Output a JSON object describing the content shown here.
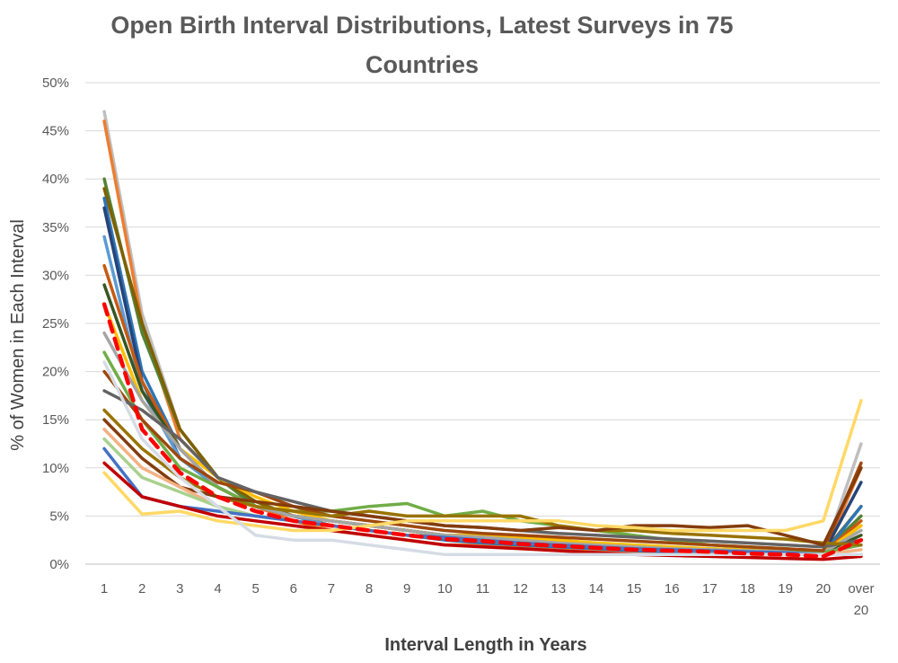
{
  "chart_data": {
    "type": "line",
    "title": "Open Birth Interval Distributions, Latest Surveys in 75 Countries",
    "xlabel": "Interval Length in Years",
    "ylabel": "% of  Women in Each Interval",
    "categories": [
      "1",
      "2",
      "3",
      "4",
      "5",
      "6",
      "7",
      "8",
      "9",
      "10",
      "11",
      "12",
      "13",
      "14",
      "15",
      "16",
      "17",
      "18",
      "19",
      "20",
      "over 20"
    ],
    "y_ticks": [
      "0%",
      "5%",
      "10%",
      "15%",
      "20%",
      "25%",
      "30%",
      "35%",
      "40%",
      "45%",
      "50%"
    ],
    "ylim": [
      0,
      50
    ],
    "grid": true,
    "legend": "none",
    "series": [
      {
        "color": "#bfbfbf",
        "values": [
          47,
          26,
          14,
          9,
          6,
          4.5,
          3.5,
          3,
          2.5,
          2,
          2,
          1.8,
          1.5,
          1.3,
          1.2,
          1.2,
          1.1,
          1,
          1,
          1,
          12.5
        ]
      },
      {
        "color": "#ed7d31",
        "values": [
          46,
          25,
          13,
          9,
          6,
          4.5,
          3.5,
          3,
          2.5,
          2,
          2,
          1.8,
          1.5,
          1.3,
          1.2,
          1.2,
          1.1,
          1,
          1,
          1,
          10
        ]
      },
      {
        "color": "#548235",
        "values": [
          40,
          24,
          14,
          9,
          6,
          5,
          4.5,
          4,
          3.5,
          3,
          2.8,
          2.5,
          2.2,
          2,
          1.8,
          1.6,
          1.5,
          1.4,
          1.3,
          1.2,
          5
        ]
      },
      {
        "color": "#7f6000",
        "values": [
          39,
          25,
          14,
          9,
          6.5,
          5,
          4.5,
          4,
          3.5,
          3,
          2.8,
          2.5,
          2.2,
          2,
          1.8,
          1.6,
          1.5,
          1.4,
          1.3,
          1.2,
          6
        ]
      },
      {
        "color": "#2e75b6",
        "values": [
          38,
          20,
          12,
          8,
          6,
          5,
          4,
          3.5,
          3,
          2.5,
          2.2,
          2,
          1.8,
          1.6,
          1.4,
          1.3,
          1.2,
          1.1,
          1,
          1,
          6
        ]
      },
      {
        "color": "#264478",
        "values": [
          37,
          19,
          11,
          8,
          6,
          5,
          4,
          3.5,
          3,
          2.8,
          2.5,
          2.2,
          2,
          1.8,
          1.6,
          1.5,
          1.4,
          1.3,
          1.2,
          1.1,
          8.5
        ]
      },
      {
        "color": "#5b9bd5",
        "values": [
          34,
          18,
          11,
          8,
          6,
          5,
          4,
          3.5,
          3,
          2.8,
          2.5,
          2.2,
          2,
          1.8,
          1.6,
          1.5,
          1.4,
          1.3,
          1.2,
          1.1,
          4
        ]
      },
      {
        "color": "#c55a11",
        "values": [
          31,
          19,
          12,
          8,
          6,
          5,
          4.5,
          4,
          3.5,
          3,
          2.8,
          2.5,
          2.2,
          2,
          1.8,
          1.6,
          1.5,
          1.4,
          1.3,
          1.2,
          4.5
        ]
      },
      {
        "color": "#375623",
        "values": [
          29,
          18,
          12,
          8,
          6,
          5,
          4.5,
          4,
          3.5,
          3,
          2.8,
          2.5,
          2.2,
          2,
          1.8,
          1.6,
          1.5,
          1.4,
          1.3,
          1.2,
          3
        ]
      },
      {
        "color": "#ffc000",
        "values": [
          27,
          17,
          12,
          9,
          7,
          5.5,
          4.5,
          4,
          3.5,
          3,
          3,
          2.8,
          2.5,
          2.2,
          2,
          1.8,
          1.6,
          1.5,
          1.4,
          1.2,
          4
        ]
      },
      {
        "color": "#ff0000",
        "dashed": true,
        "values": [
          27,
          14,
          9.5,
          7,
          5.5,
          4.5,
          4,
          3.5,
          3,
          2.6,
          2.4,
          2.1,
          1.9,
          1.7,
          1.5,
          1.4,
          1.3,
          1.1,
          1,
          0.8,
          2.5
        ]
      },
      {
        "color": "#a5a5a5",
        "values": [
          24,
          17,
          12,
          8,
          6,
          5,
          4.5,
          4,
          3.5,
          3,
          2.8,
          2.5,
          2.2,
          2,
          1.8,
          1.6,
          1.5,
          1.4,
          1.3,
          1.2,
          3.5
        ]
      },
      {
        "color": "#70ad47",
        "values": [
          22,
          15,
          10,
          8,
          6,
          5.5,
          5.5,
          6,
          6.3,
          5,
          5.5,
          4.5,
          4,
          3.5,
          3,
          2.5,
          2,
          1.8,
          1.6,
          1.2,
          2
        ]
      },
      {
        "color": "#9e480e",
        "values": [
          20,
          15,
          11,
          8.5,
          7.5,
          6,
          5,
          4.5,
          4,
          3.5,
          3.2,
          3,
          2.8,
          2.6,
          2.4,
          2.2,
          2,
          1.8,
          1.6,
          1.4,
          10.5
        ]
      },
      {
        "color": "#636363",
        "values": [
          18,
          16,
          13,
          9,
          7.5,
          6.5,
          5.5,
          5,
          4.5,
          4,
          3.8,
          3.5,
          3.2,
          3,
          2.8,
          2.6,
          2.4,
          2.2,
          2,
          1.8,
          2.5
        ]
      },
      {
        "color": "#997300",
        "values": [
          16,
          12,
          9,
          7,
          6,
          5.5,
          5,
          5.5,
          5,
          5,
          5,
          5,
          4,
          3.5,
          3.5,
          3.2,
          3,
          2.8,
          2.6,
          2.2,
          2
        ]
      },
      {
        "color": "#843c0c",
        "values": [
          15,
          11,
          8,
          7,
          6.5,
          6,
          5.5,
          5,
          4.5,
          4,
          3.8,
          3.5,
          3.8,
          3.5,
          4,
          4,
          3.8,
          4,
          3,
          2,
          10
        ]
      },
      {
        "color": "#f4b183",
        "values": [
          14,
          10,
          8,
          6,
          5,
          4.5,
          4,
          3.5,
          3,
          2.8,
          2.5,
          2.2,
          2,
          1.8,
          1.6,
          1.5,
          1.4,
          1.3,
          1.2,
          1,
          1.5
        ]
      },
      {
        "color": "#a9d18e",
        "values": [
          13,
          9,
          7.5,
          6,
          5,
          4.5,
          4,
          3.5,
          3,
          2.8,
          2.5,
          2.2,
          2,
          1.8,
          1.6,
          1.5,
          1.4,
          1.3,
          1.2,
          1,
          1
        ]
      },
      {
        "color": "#4472c4",
        "values": [
          12,
          7,
          6,
          5.5,
          5,
          4.5,
          4,
          3.5,
          3,
          2.8,
          2.5,
          2.2,
          2,
          1.8,
          1.6,
          1.5,
          1.4,
          1.3,
          1.2,
          1,
          1
        ]
      },
      {
        "color": "#c00000",
        "values": [
          10.5,
          7,
          6,
          5,
          4.5,
          4,
          3.5,
          3,
          2.5,
          2,
          1.8,
          1.6,
          1.4,
          1.2,
          1,
          0.9,
          0.8,
          0.7,
          0.6,
          0.5,
          0.8
        ]
      },
      {
        "color": "#ffd966",
        "values": [
          9.5,
          5.2,
          5.5,
          4.5,
          4,
          3.5,
          3.5,
          4,
          4.5,
          4.5,
          4.5,
          4.5,
          4.5,
          4,
          3.8,
          3.5,
          3.5,
          3.5,
          3.5,
          4.5,
          17
        ]
      },
      {
        "color": "#d6dce5",
        "values": [
          21,
          13,
          9,
          6,
          3,
          2.5,
          2.5,
          2,
          1.5,
          1,
          1,
          1,
          1,
          1,
          1,
          1,
          1,
          1,
          1,
          1,
          1
        ]
      }
    ]
  }
}
